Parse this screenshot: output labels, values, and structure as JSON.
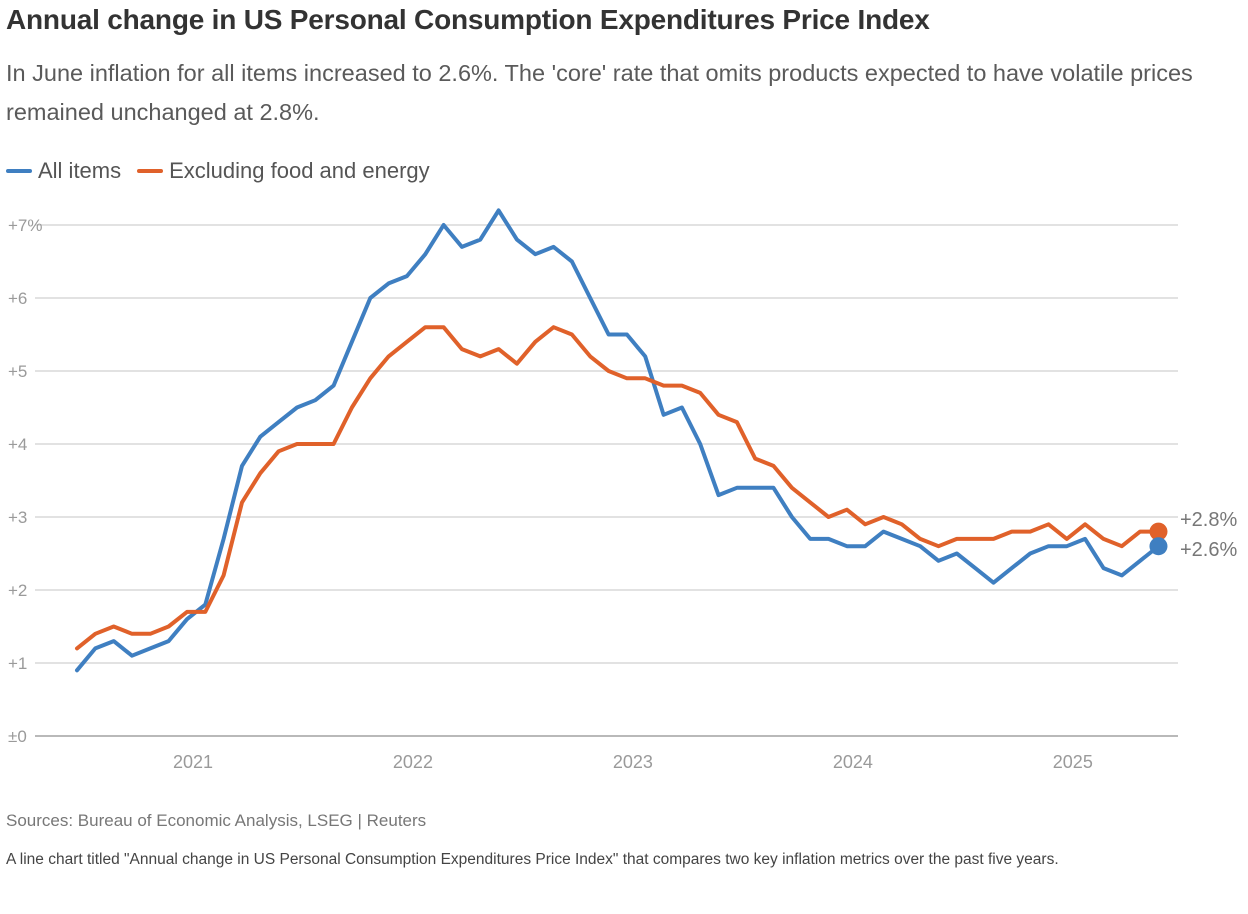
{
  "chart_data": {
    "type": "line",
    "title": "Annual change in US Personal Consumption Expenditures Price Index",
    "subtitle": "In June inflation for all items increased to 2.6%. The 'core' rate that omits products expected to have volatile prices remained unchanged at 2.8%.",
    "xlabel": "",
    "ylabel": "",
    "ylim": [
      0,
      7
    ],
    "y_ticks": [
      "±0",
      "+1",
      "+2",
      "+3",
      "+4",
      "+5",
      "+6",
      "+7%"
    ],
    "x_tick_labels": [
      "2021",
      "2022",
      "2023",
      "2024",
      "2025"
    ],
    "x_tick_dates": [
      "2021-01",
      "2022-01",
      "2023-01",
      "2024-01",
      "2025-01"
    ],
    "grid": true,
    "legend_placement": "top-left",
    "x": [
      "2020-07",
      "2020-08",
      "2020-09",
      "2020-10",
      "2020-11",
      "2020-12",
      "2021-01",
      "2021-02",
      "2021-03",
      "2021-04",
      "2021-05",
      "2021-06",
      "2021-07",
      "2021-08",
      "2021-09",
      "2021-10",
      "2021-11",
      "2021-12",
      "2022-01",
      "2022-02",
      "2022-03",
      "2022-04",
      "2022-05",
      "2022-06",
      "2022-07",
      "2022-08",
      "2022-09",
      "2022-10",
      "2022-11",
      "2022-12",
      "2023-01",
      "2023-02",
      "2023-03",
      "2023-04",
      "2023-05",
      "2023-06",
      "2023-07",
      "2023-08",
      "2023-09",
      "2023-10",
      "2023-11",
      "2023-12",
      "2024-01",
      "2024-02",
      "2024-03",
      "2024-04",
      "2024-05",
      "2024-06",
      "2024-07",
      "2024-08",
      "2024-09",
      "2024-10",
      "2024-11",
      "2024-12",
      "2025-01",
      "2025-02",
      "2025-03",
      "2025-04",
      "2025-05",
      "2025-06"
    ],
    "series": [
      {
        "name": "All items",
        "color": "#3f7fc1",
        "end_label": "+2.6%",
        "values": [
          0.9,
          1.2,
          1.3,
          1.1,
          1.2,
          1.3,
          1.6,
          1.8,
          2.7,
          3.7,
          4.1,
          4.3,
          4.5,
          4.6,
          4.8,
          5.4,
          6.0,
          6.2,
          6.3,
          6.6,
          7.0,
          6.7,
          6.8,
          7.2,
          6.8,
          6.6,
          6.7,
          6.5,
          6.0,
          5.5,
          5.5,
          5.2,
          4.4,
          4.5,
          4.0,
          3.3,
          3.4,
          3.4,
          3.4,
          3.0,
          2.7,
          2.7,
          2.6,
          2.6,
          2.8,
          2.7,
          2.6,
          2.4,
          2.5,
          2.3,
          2.1,
          2.3,
          2.5,
          2.6,
          2.6,
          2.7,
          2.3,
          2.2,
          2.4,
          2.6
        ]
      },
      {
        "name": "Excluding food and energy",
        "color": "#e0612a",
        "end_label": "+2.8%",
        "values": [
          1.2,
          1.4,
          1.5,
          1.4,
          1.4,
          1.5,
          1.7,
          1.7,
          2.2,
          3.2,
          3.6,
          3.9,
          4.0,
          4.0,
          4.0,
          4.5,
          4.9,
          5.2,
          5.4,
          5.6,
          5.6,
          5.3,
          5.2,
          5.3,
          5.1,
          5.4,
          5.6,
          5.5,
          5.2,
          5.0,
          4.9,
          4.9,
          4.8,
          4.8,
          4.7,
          4.4,
          4.3,
          3.8,
          3.7,
          3.4,
          3.2,
          3.0,
          3.1,
          2.9,
          3.0,
          2.9,
          2.7,
          2.6,
          2.7,
          2.7,
          2.7,
          2.8,
          2.8,
          2.9,
          2.7,
          2.9,
          2.7,
          2.6,
          2.8,
          2.8
        ]
      }
    ]
  },
  "footer": {
    "source": "Sources: Bureau of Economic Analysis, LSEG | Reuters",
    "description": "A line chart titled \"Annual change in US Personal Consumption Expenditures Price Index\" that compares two key inflation metrics over the past five years."
  }
}
